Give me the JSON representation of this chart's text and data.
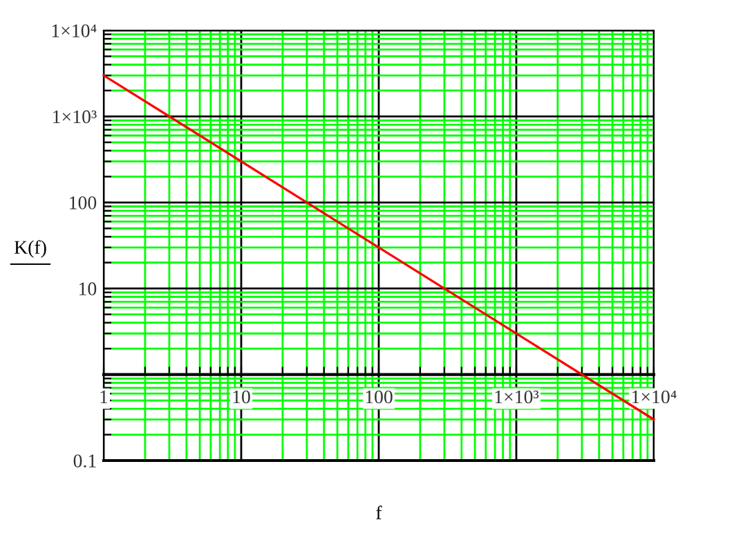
{
  "chart_data": {
    "type": "line",
    "xlabel": "f",
    "ylabel": "K(f)",
    "x": [
      1,
      10000
    ],
    "series": [
      {
        "color": "#ff0000",
        "values": [
          3000,
          0.3
        ]
      }
    ],
    "log": "xy",
    "xlim": [
      1,
      10000
    ],
    "ylim": [
      0.1,
      10000
    ],
    "xticks": [
      1,
      {
        "value": 2,
        "label": null
      },
      {
        "value": 3,
        "label": null
      },
      {
        "value": 4,
        "label": null
      },
      {
        "value": 5,
        "label": null
      },
      {
        "value": 6,
        "label": null
      },
      {
        "value": 7,
        "label": null
      },
      {
        "value": 8,
        "label": null
      },
      {
        "value": 9,
        "label": null
      },
      10,
      {
        "value": 20,
        "label": null
      },
      {
        "value": 30,
        "label": null
      },
      {
        "value": 40,
        "label": null
      },
      {
        "value": 50,
        "label": null
      },
      {
        "value": 60,
        "label": null
      },
      {
        "value": 70,
        "label": null
      },
      {
        "value": 80,
        "label": null
      },
      {
        "value": 90,
        "label": null
      },
      100,
      {
        "value": 200,
        "label": null
      },
      {
        "value": 300,
        "label": null
      },
      {
        "value": 400,
        "label": null
      },
      {
        "value": 500,
        "label": null
      },
      {
        "value": 600,
        "label": null
      },
      {
        "value": 700,
        "label": null
      },
      {
        "value": 800,
        "label": null
      },
      {
        "value": 900,
        "label": null
      },
      {
        "value": 1000,
        "label": "1×10³"
      },
      {
        "value": 2000,
        "label": null
      },
      {
        "value": 3000,
        "label": null
      },
      {
        "value": 4000,
        "label": null
      },
      {
        "value": 5000,
        "label": null
      },
      {
        "value": 6000,
        "label": null
      },
      {
        "value": 7000,
        "label": null
      },
      {
        "value": 8000,
        "label": null
      },
      {
        "value": 9000,
        "label": null
      },
      {
        "value": 10000,
        "label": "1×10⁴"
      }
    ],
    "yticks": [
      0.1,
      {
        "value": 0.2,
        "label": null
      },
      {
        "value": 0.3,
        "label": null
      },
      {
        "value": 0.4,
        "label": null
      },
      {
        "value": 0.5,
        "label": null
      },
      {
        "value": 0.6,
        "label": null
      },
      {
        "value": 0.7,
        "label": null
      },
      {
        "value": 0.8,
        "label": null
      },
      {
        "value": 0.9,
        "label": null
      },
      {
        "value": 1,
        "label": null
      },
      {
        "value": 2,
        "label": null
      },
      {
        "value": 3,
        "label": null
      },
      {
        "value": 4,
        "label": null
      },
      {
        "value": 5,
        "label": null
      },
      {
        "value": 6,
        "label": null
      },
      {
        "value": 7,
        "label": null
      },
      {
        "value": 8,
        "label": null
      },
      {
        "value": 9,
        "label": null
      },
      10,
      {
        "value": 20,
        "label": null
      },
      {
        "value": 30,
        "label": null
      },
      {
        "value": 40,
        "label": null
      },
      {
        "value": 50,
        "label": null
      },
      {
        "value": 60,
        "label": null
      },
      {
        "value": 70,
        "label": null
      },
      {
        "value": 80,
        "label": null
      },
      {
        "value": 90,
        "label": null
      },
      100,
      {
        "value": 200,
        "label": null
      },
      {
        "value": 300,
        "label": null
      },
      {
        "value": 400,
        "label": null
      },
      {
        "value": 500,
        "label": null
      },
      {
        "value": 600,
        "label": null
      },
      {
        "value": 700,
        "label": null
      },
      {
        "value": 800,
        "label": null
      },
      {
        "value": 900,
        "label": null
      },
      {
        "value": 1000,
        "label": "1×10³"
      },
      {
        "value": 2000,
        "label": null
      },
      {
        "value": 3000,
        "label": null
      },
      {
        "value": 4000,
        "label": null
      },
      {
        "value": 5000,
        "label": null
      },
      {
        "value": 6000,
        "label": null
      },
      {
        "value": 7000,
        "label": null
      },
      {
        "value": 8000,
        "label": null
      },
      {
        "value": 9000,
        "label": null
      },
      {
        "value": 10000,
        "label": "1×10⁴"
      }
    ],
    "grid": true
  }
}
